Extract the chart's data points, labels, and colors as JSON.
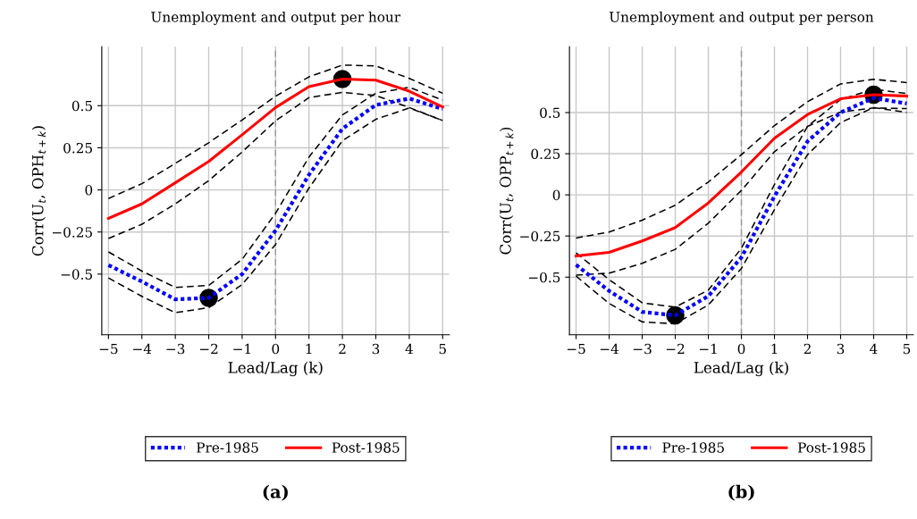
{
  "chart_data": [
    {
      "type": "line",
      "title": "Unemployment and output per hour",
      "xlabel": "Lead/Lag (k)",
      "ylabel": "Corr(U$_{t}$, OPH$_{t+k}$)",
      "annotations": [
        "(a)"
      ],
      "x": [
        -5,
        -4,
        -3,
        -2,
        -1,
        0,
        1,
        2,
        3,
        4,
        5
      ],
      "xlim": [
        -5.2,
        5.2
      ],
      "xticks": [
        {
          "value": -5,
          "label": "−5"
        },
        {
          "value": -4,
          "label": "−4"
        },
        {
          "value": -3,
          "label": "−3"
        },
        {
          "value": -2,
          "label": "−2"
        },
        {
          "value": -1,
          "label": "−1"
        },
        0,
        1,
        2,
        3,
        4,
        5
      ],
      "ylim": [
        -0.86,
        0.85
      ],
      "yticks": [
        -0.5,
        -0.25,
        0,
        0.25,
        0.5
      ],
      "grid": true,
      "legend": "bottom",
      "ref_lines": [
        {
          "axis": "x",
          "value": 0,
          "label": null,
          "color": "#999999",
          "line_style": "dashed"
        }
      ],
      "series": [
        {
          "name": "Pre-1985",
          "color": "#0000ff",
          "line_style": "dotted",
          "values": [
            -0.447,
            -0.544,
            -0.65,
            -0.641,
            -0.5,
            -0.241,
            0.09,
            0.363,
            0.504,
            0.542,
            0.481
          ]
        },
        {
          "name": "Post-1985",
          "color": "#ff0000",
          "line_style": "solid",
          "values": [
            -0.169,
            -0.083,
            0.042,
            0.169,
            0.327,
            0.489,
            0.613,
            0.658,
            0.651,
            0.586,
            0.493
          ]
        },
        {
          "color": "#000000",
          "line_style": "dashed",
          "values": [
            -0.368,
            -0.482,
            -0.579,
            -0.567,
            -0.412,
            -0.139,
            0.195,
            0.445,
            0.574,
            0.609,
            0.533
          ]
        },
        {
          "color": "#000000",
          "line_style": "dashed",
          "values": [
            -0.523,
            -0.632,
            -0.729,
            -0.699,
            -0.562,
            -0.324,
            0.011,
            0.292,
            0.419,
            0.486,
            0.412
          ]
        },
        {
          "color": "#000000",
          "line_style": "dashed",
          "values": [
            -0.051,
            0.037,
            0.157,
            0.28,
            0.415,
            0.556,
            0.671,
            0.741,
            0.736,
            0.662,
            0.574
          ]
        },
        {
          "color": "#000000",
          "line_style": "dashed",
          "values": [
            -0.289,
            -0.204,
            -0.083,
            0.055,
            0.225,
            0.41,
            0.548,
            0.579,
            0.56,
            0.489,
            0.412
          ]
        },
        {
          "type": "scatter",
          "color": "#000000",
          "marker": "circle",
          "x": [
            -2,
            2
          ],
          "values": [
            -0.641,
            0.658
          ]
        }
      ]
    },
    {
      "type": "line",
      "title": "Unemployment and output per person",
      "xlabel": "Lead/Lag (k)",
      "ylabel": "Corr(U$_{t}$, OPP$_{t+k}$)",
      "annotations": [
        "(b)"
      ],
      "x": [
        -5,
        -4,
        -3,
        -2,
        -1,
        0,
        1,
        2,
        3,
        4,
        5
      ],
      "xlim": [
        -5.2,
        5.2
      ],
      "xticks": [
        {
          "value": -5,
          "label": "−5"
        },
        {
          "value": -4,
          "label": "−4"
        },
        {
          "value": -3,
          "label": "−3"
        },
        {
          "value": -2,
          "label": "−2"
        },
        {
          "value": -1,
          "label": "−1"
        },
        0,
        1,
        2,
        3,
        4,
        5
      ],
      "ylim": [
        -0.85,
        0.9
      ],
      "yticks": [
        -0.5,
        -0.25,
        0,
        0.25,
        0.5
      ],
      "grid": true,
      "legend": "bottom",
      "ref_lines": [
        {
          "axis": "x",
          "value": 0,
          "label": null,
          "color": "#999999",
          "line_style": "dashed"
        }
      ],
      "series": [
        {
          "name": "Pre-1985",
          "color": "#0000ff",
          "line_style": "dotted",
          "values": [
            -0.425,
            -0.584,
            -0.711,
            -0.732,
            -0.615,
            -0.38,
            -0.009,
            0.325,
            0.501,
            0.588,
            0.555
          ]
        },
        {
          "name": "Post-1985",
          "color": "#ff0000",
          "line_style": "solid",
          "values": [
            -0.371,
            -0.349,
            -0.28,
            -0.199,
            -0.049,
            0.139,
            0.344,
            0.488,
            0.584,
            0.609,
            0.6
          ]
        },
        {
          "color": "#000000",
          "line_style": "dashed",
          "values": [
            -0.353,
            -0.515,
            -0.656,
            -0.682,
            -0.579,
            -0.325,
            0.063,
            0.416,
            0.579,
            0.642,
            0.615
          ]
        },
        {
          "color": "#000000",
          "line_style": "dashed",
          "values": [
            -0.494,
            -0.66,
            -0.772,
            -0.783,
            -0.669,
            -0.447,
            -0.09,
            0.244,
            0.439,
            0.53,
            0.501
          ]
        },
        {
          "color": "#000000",
          "line_style": "dashed",
          "values": [
            -0.262,
            -0.226,
            -0.154,
            -0.063,
            0.078,
            0.244,
            0.421,
            0.566,
            0.674,
            0.702,
            0.682
          ]
        },
        {
          "color": "#000000",
          "line_style": "dashed",
          "values": [
            -0.488,
            -0.476,
            -0.416,
            -0.331,
            -0.172,
            0.027,
            0.262,
            0.416,
            0.503,
            0.528,
            0.524
          ]
        },
        {
          "type": "scatter",
          "color": "#000000",
          "marker": "circle",
          "x": [
            -2,
            4
          ],
          "values": [
            -0.732,
            0.609
          ]
        }
      ]
    }
  ]
}
